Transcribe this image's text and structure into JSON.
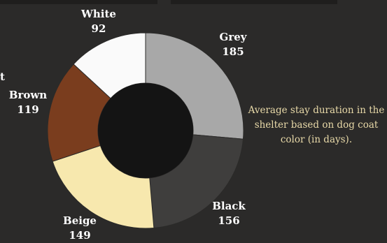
{
  "chart_data": {
    "type": "pie",
    "subtype": "donut",
    "title": "Average stay duration in the shelter based on dog coat color (in days).",
    "categories": [
      "Grey",
      "Black",
      "Beige",
      "Brown",
      "White"
    ],
    "values": [
      185,
      156,
      149,
      119,
      92
    ],
    "colors": [
      "#a8a8a8",
      "#3f3e3d",
      "#f7e8ae",
      "#7a3d1e",
      "#fafafa"
    ],
    "start_angle_deg": 0,
    "direction": "clockwise",
    "legend": "none"
  },
  "edge_fragments": {
    "left_char": "t"
  }
}
